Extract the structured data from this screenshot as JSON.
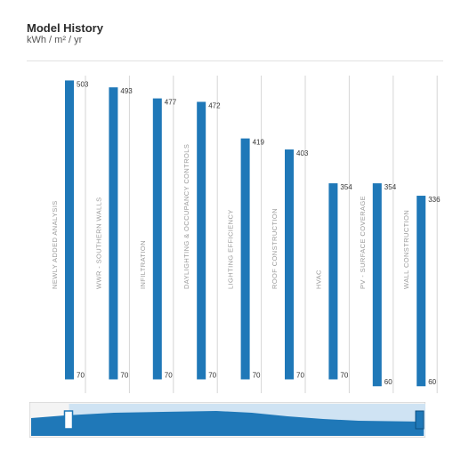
{
  "header": {
    "title": "Model History",
    "subtitle": "kWh / m² / yr"
  },
  "colors": {
    "bar": "#1f78b8",
    "gridline": "#d6d6d6",
    "category_label": "#9a9a9a",
    "value_label": "#333333",
    "navigator_fill": "#1f78b8",
    "navigator_window": "#cfe3f3"
  },
  "chart_data": {
    "type": "bar",
    "orientation": "vertical",
    "style": "floating range bars",
    "categories": [
      "NEWLY ADDED ANALYSIS",
      "WWR - SOUTHERN WALLS",
      "INFILTRATION",
      "DAYLIGHTING & OCCUPANCY CONTROLS",
      "LIGHTING EFFICIENCY",
      "ROOF CONSTRUCTION",
      "HVAC",
      "PV - SURFACE COVERAGE",
      "WALL CONSTRUCTION"
    ],
    "series": [
      {
        "high": [
          503,
          493,
          477,
          472,
          419,
          403,
          354,
          354,
          336
        ],
        "low": [
          70,
          70,
          70,
          70,
          70,
          70,
          70,
          60,
          60
        ]
      }
    ],
    "ylim": [
      50,
      510
    ],
    "grid": {
      "vertical": true,
      "horizontal": false
    },
    "legend": "none"
  },
  "navigator": {
    "window_start": 0.1,
    "window_end": 1.0
  }
}
